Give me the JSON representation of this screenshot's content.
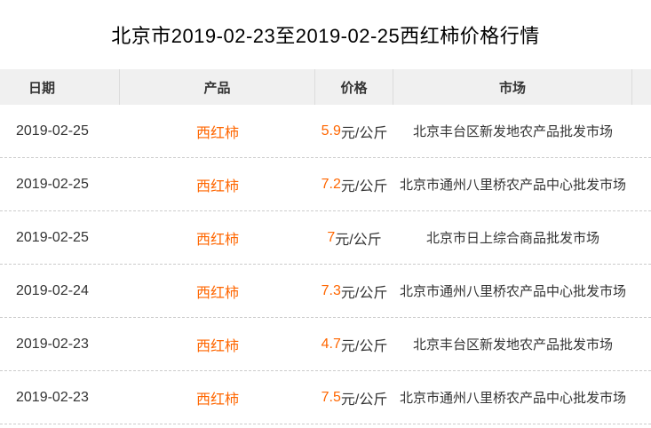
{
  "title": "北京市2019-02-23至2019-02-25西红柿价格行情",
  "table": {
    "headers": [
      "日期",
      "产品",
      "价格",
      "市场"
    ],
    "rows": [
      {
        "date": "2019-02-25",
        "product": "西红柿",
        "price": "5.9",
        "unit": "元/公斤",
        "market": "北京丰台区新发地农产品批发市场"
      },
      {
        "date": "2019-02-25",
        "product": "西红柿",
        "price": "7.2",
        "unit": "元/公斤",
        "market": "北京市通州八里桥农产品中心批发市场"
      },
      {
        "date": "2019-02-25",
        "product": "西红柿",
        "price": "7",
        "unit": "元/公斤",
        "market": "北京市日上综合商品批发市场"
      },
      {
        "date": "2019-02-24",
        "product": "西红柿",
        "price": "7.3",
        "unit": "元/公斤",
        "market": "北京市通州八里桥农产品中心批发市场"
      },
      {
        "date": "2019-02-23",
        "product": "西红柿",
        "price": "4.7",
        "unit": "元/公斤",
        "market": "北京丰台区新发地农产品批发市场"
      },
      {
        "date": "2019-02-23",
        "product": "西红柿",
        "price": "7.5",
        "unit": "元/公斤",
        "market": "北京市通州八里桥农产品中心批发市场"
      }
    ]
  },
  "colors": {
    "accent": "#ff6600",
    "text": "#333333",
    "title_text": "#000000",
    "header_bg": "#f0f0f0",
    "header_border": "#dcdcdc",
    "row_divider": "#cccccc"
  }
}
